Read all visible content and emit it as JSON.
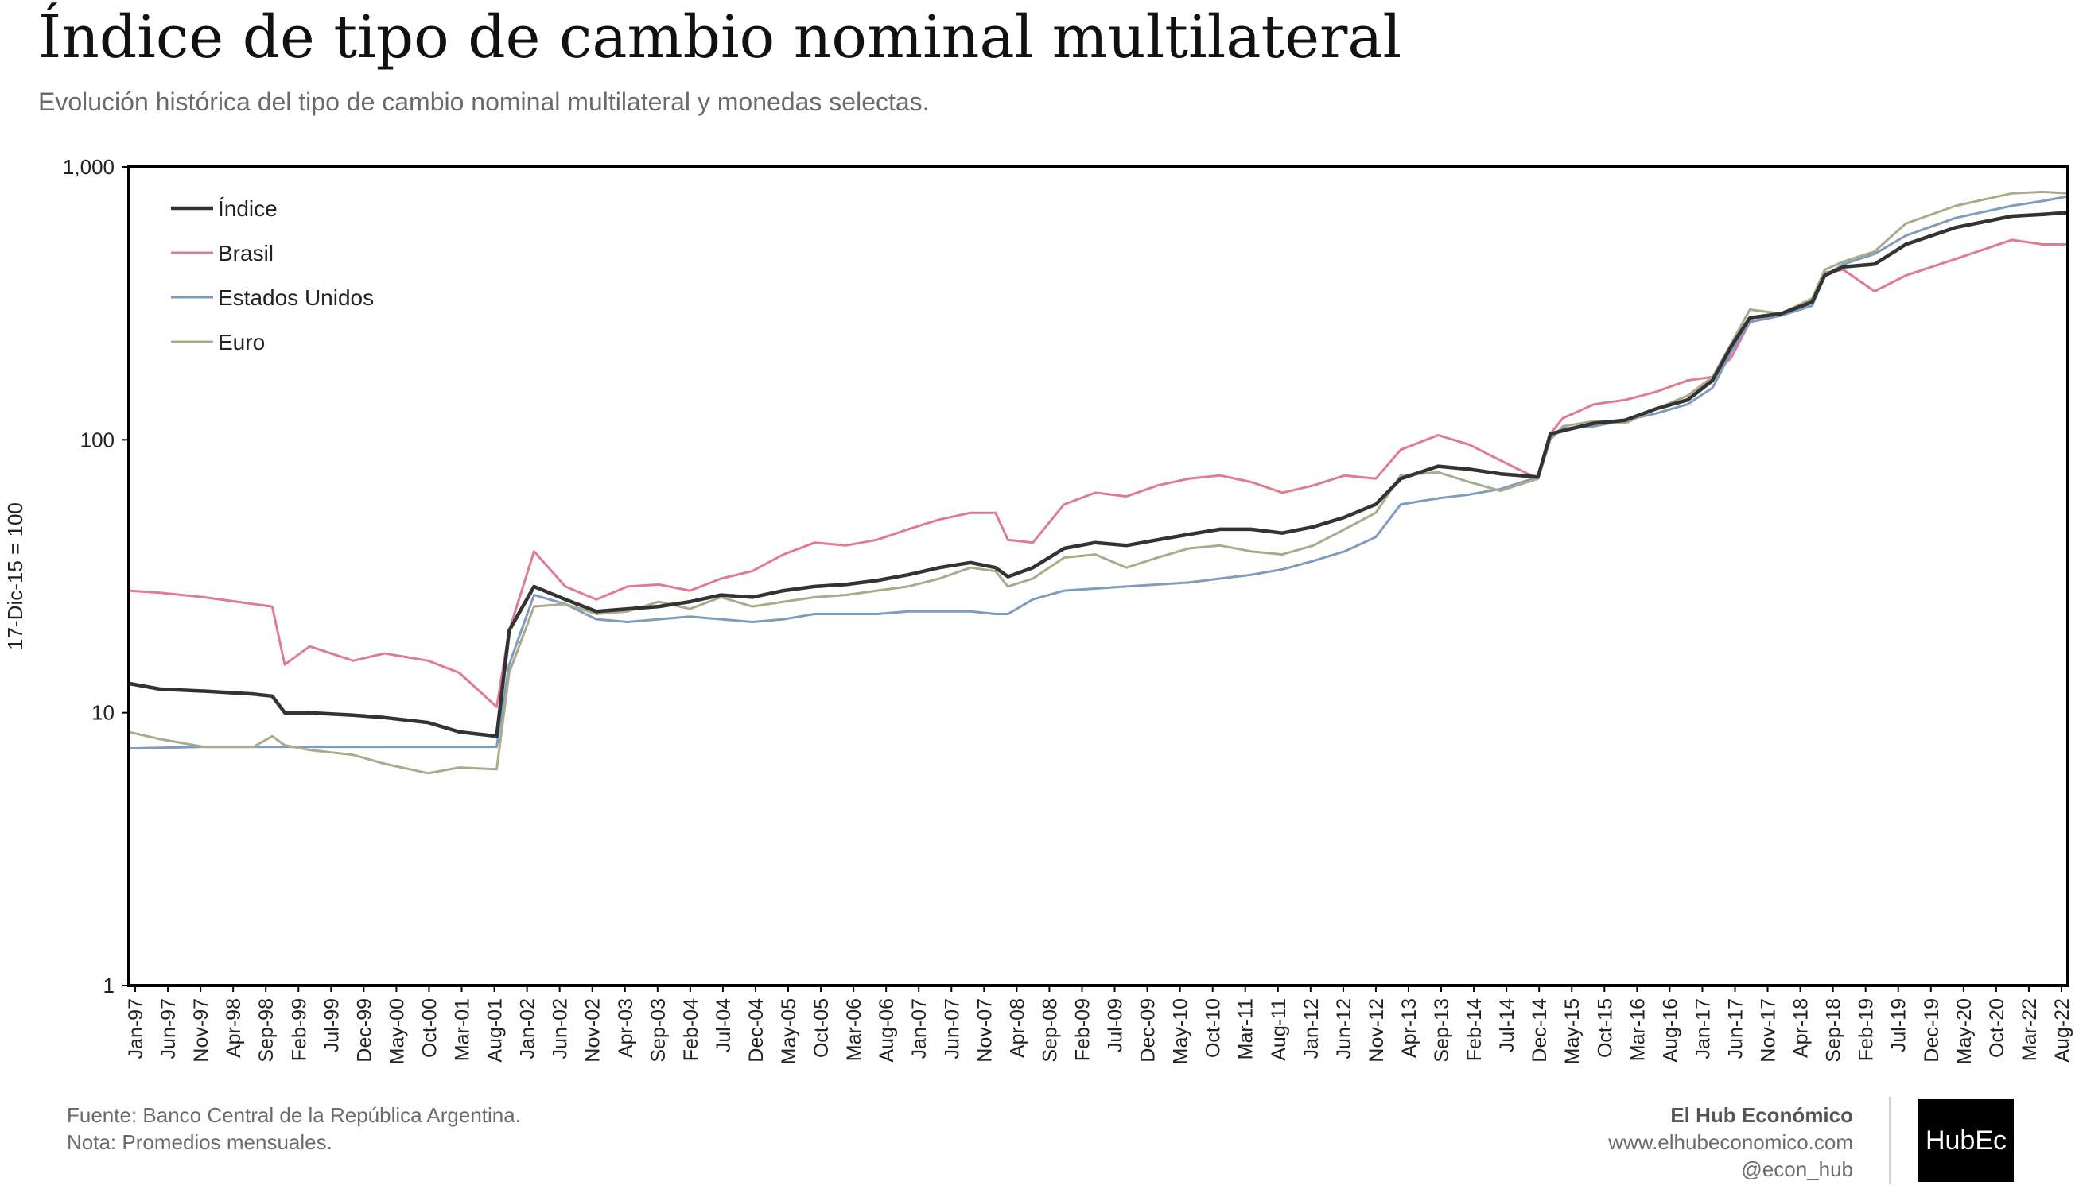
{
  "title": "Índice de tipo de cambio nominal multilateral",
  "subtitle": "Evolución histórica del tipo de cambio nominal multilateral y monedas selectas.",
  "footer": {
    "source": "Fuente: Banco Central de la República Argentina.",
    "note": "Nota: Promedios mensuales.",
    "brand": "El Hub Económico",
    "website": "www.elhubeconomico.com",
    "handle": "@econ_hub",
    "logo": "HubEc"
  },
  "colors": {
    "indice": "#333333",
    "brasil": "#e07b93",
    "eeuu": "#7f9cbd",
    "euro": "#a8ab8c",
    "axis": "#000000",
    "text": "#222222"
  },
  "chart_data": {
    "type": "line",
    "title": "Índice de tipo de cambio nominal multilateral",
    "ylabel": "17-Dic-15 = 100",
    "xlabel": "",
    "yscale": "log",
    "ylim": [
      1,
      1000
    ],
    "yticks": [
      1,
      10,
      100,
      1000
    ],
    "ytick_labels": [
      "1",
      "10",
      "100",
      "1,000"
    ],
    "xlim": [
      "1997-01",
      "2022-12"
    ],
    "xtick_labels": [
      "Jan-97",
      "Jun-97",
      "Nov-97",
      "Apr-98",
      "Sep-98",
      "Feb-99",
      "Jul-99",
      "Dec-99",
      "May-00",
      "Oct-00",
      "Mar-01",
      "Aug-01",
      "Jan-02",
      "Jun-02",
      "Nov-02",
      "Apr-03",
      "Sep-03",
      "Feb-04",
      "Jul-04",
      "Dec-04",
      "May-05",
      "Oct-05",
      "Mar-06",
      "Aug-06",
      "Jan-07",
      "Jun-07",
      "Nov-07",
      "Apr-08",
      "Sep-08",
      "Feb-09",
      "Jul-09",
      "Dec-09",
      "May-10",
      "Oct-10",
      "Mar-11",
      "Aug-11",
      "Jan-12",
      "Jun-12",
      "Nov-12",
      "Apr-13",
      "Sep-13",
      "Feb-14",
      "Jul-14",
      "Dec-14",
      "May-15",
      "Oct-15",
      "Mar-16",
      "Aug-16",
      "Jan-17",
      "Jun-17",
      "Nov-17",
      "Apr-18",
      "Sep-18",
      "Feb-19",
      "Jul-19",
      "Dec-19",
      "May-20",
      "Oct-20",
      "Mar-22",
      "Aug-22"
    ],
    "legend_position": "top-left",
    "series": [
      {
        "name": "Índice",
        "key": "indice",
        "width": 4.5,
        "points": [
          [
            "1997-01",
            12.8
          ],
          [
            "1997-06",
            12.2
          ],
          [
            "1998-01",
            12.0
          ],
          [
            "1998-09",
            11.7
          ],
          [
            "1998-12",
            11.5
          ],
          [
            "1999-02",
            10.0
          ],
          [
            "1999-06",
            10.0
          ],
          [
            "2000-01",
            9.8
          ],
          [
            "2000-06",
            9.6
          ],
          [
            "2001-01",
            9.2
          ],
          [
            "2001-06",
            8.5
          ],
          [
            "2001-12",
            8.2
          ],
          [
            "2002-02",
            20.0
          ],
          [
            "2002-06",
            29.0
          ],
          [
            "2002-11",
            26.0
          ],
          [
            "2003-04",
            23.5
          ],
          [
            "2003-09",
            24.0
          ],
          [
            "2004-02",
            24.5
          ],
          [
            "2004-07",
            25.5
          ],
          [
            "2004-12",
            27.0
          ],
          [
            "2005-05",
            26.5
          ],
          [
            "2005-10",
            28.0
          ],
          [
            "2006-03",
            29.0
          ],
          [
            "2006-08",
            29.5
          ],
          [
            "2007-01",
            30.5
          ],
          [
            "2007-06",
            32.0
          ],
          [
            "2007-11",
            34.0
          ],
          [
            "2008-04",
            35.5
          ],
          [
            "2008-08",
            34.0
          ],
          [
            "2008-10",
            31.5
          ],
          [
            "2009-02",
            34.0
          ],
          [
            "2009-07",
            40.0
          ],
          [
            "2009-12",
            42.0
          ],
          [
            "2010-05",
            41.0
          ],
          [
            "2010-10",
            43.0
          ],
          [
            "2011-03",
            45.0
          ],
          [
            "2011-08",
            47.0
          ],
          [
            "2012-01",
            47.0
          ],
          [
            "2012-06",
            45.5
          ],
          [
            "2012-11",
            48.0
          ],
          [
            "2013-04",
            52.0
          ],
          [
            "2013-09",
            58.0
          ],
          [
            "2014-01",
            72.0
          ],
          [
            "2014-07",
            80.0
          ],
          [
            "2014-12",
            78.0
          ],
          [
            "2015-05",
            75.0
          ],
          [
            "2015-11",
            73.0
          ],
          [
            "2016-01",
            105.0
          ],
          [
            "2016-03",
            108.0
          ],
          [
            "2016-08",
            115.0
          ],
          [
            "2017-01",
            118.0
          ],
          [
            "2017-06",
            130.0
          ],
          [
            "2017-11",
            140.0
          ],
          [
            "2018-03",
            165.0
          ],
          [
            "2018-06",
            220.0
          ],
          [
            "2018-09",
            280.0
          ],
          [
            "2019-02",
            290.0
          ],
          [
            "2019-07",
            320.0
          ],
          [
            "2019-09",
            400.0
          ],
          [
            "2019-12",
            430.0
          ],
          [
            "2020-05",
            440.0
          ],
          [
            "2020-10",
            520.0
          ],
          [
            "2021-06",
            600.0
          ],
          [
            "2022-03",
            660.0
          ],
          [
            "2022-08",
            670.0
          ],
          [
            "2022-12",
            680.0
          ]
        ]
      },
      {
        "name": "Brasil",
        "key": "brasil",
        "width": 3,
        "points": [
          [
            "1997-01",
            28.0
          ],
          [
            "1997-06",
            27.5
          ],
          [
            "1998-01",
            26.5
          ],
          [
            "1998-09",
            25.0
          ],
          [
            "1998-12",
            24.5
          ],
          [
            "1999-02",
            15.0
          ],
          [
            "1999-06",
            17.5
          ],
          [
            "2000-01",
            15.5
          ],
          [
            "2000-06",
            16.5
          ],
          [
            "2001-01",
            15.5
          ],
          [
            "2001-06",
            14.0
          ],
          [
            "2001-12",
            10.5
          ],
          [
            "2002-02",
            20.0
          ],
          [
            "2002-06",
            39.0
          ],
          [
            "2002-11",
            29.0
          ],
          [
            "2003-04",
            26.0
          ],
          [
            "2003-09",
            29.0
          ],
          [
            "2004-02",
            29.5
          ],
          [
            "2004-07",
            28.0
          ],
          [
            "2004-12",
            31.0
          ],
          [
            "2005-05",
            33.0
          ],
          [
            "2005-10",
            38.0
          ],
          [
            "2006-03",
            42.0
          ],
          [
            "2006-08",
            41.0
          ],
          [
            "2007-01",
            43.0
          ],
          [
            "2007-06",
            47.0
          ],
          [
            "2007-11",
            51.0
          ],
          [
            "2008-04",
            54.0
          ],
          [
            "2008-08",
            54.0
          ],
          [
            "2008-10",
            43.0
          ],
          [
            "2009-02",
            42.0
          ],
          [
            "2009-07",
            58.0
          ],
          [
            "2009-12",
            64.0
          ],
          [
            "2010-05",
            62.0
          ],
          [
            "2010-10",
            68.0
          ],
          [
            "2011-03",
            72.0
          ],
          [
            "2011-08",
            74.0
          ],
          [
            "2012-01",
            70.0
          ],
          [
            "2012-06",
            64.0
          ],
          [
            "2012-11",
            68.0
          ],
          [
            "2013-04",
            74.0
          ],
          [
            "2013-09",
            72.0
          ],
          [
            "2014-01",
            92.0
          ],
          [
            "2014-07",
            104.0
          ],
          [
            "2014-12",
            96.0
          ],
          [
            "2015-05",
            84.0
          ],
          [
            "2015-11",
            72.0
          ],
          [
            "2016-01",
            105.0
          ],
          [
            "2016-03",
            120.0
          ],
          [
            "2016-08",
            135.0
          ],
          [
            "2017-01",
            140.0
          ],
          [
            "2017-06",
            150.0
          ],
          [
            "2017-11",
            165.0
          ],
          [
            "2018-03",
            170.0
          ],
          [
            "2018-06",
            200.0
          ],
          [
            "2018-09",
            270.0
          ],
          [
            "2019-02",
            290.0
          ],
          [
            "2019-07",
            310.0
          ],
          [
            "2019-09",
            410.0
          ],
          [
            "2019-12",
            420.0
          ],
          [
            "2020-05",
            350.0
          ],
          [
            "2020-10",
            400.0
          ],
          [
            "2021-06",
            460.0
          ],
          [
            "2022-03",
            540.0
          ],
          [
            "2022-08",
            520.0
          ],
          [
            "2022-12",
            520.0
          ]
        ]
      },
      {
        "name": "Estados Unidos",
        "key": "eeuu",
        "width": 3,
        "points": [
          [
            "1997-01",
            7.4
          ],
          [
            "1998-01",
            7.5
          ],
          [
            "1999-01",
            7.5
          ],
          [
            "2000-01",
            7.5
          ],
          [
            "2001-01",
            7.5
          ],
          [
            "2001-12",
            7.5
          ],
          [
            "2002-02",
            15.0
          ],
          [
            "2002-06",
            27.0
          ],
          [
            "2002-11",
            25.0
          ],
          [
            "2003-04",
            22.0
          ],
          [
            "2003-09",
            21.5
          ],
          [
            "2004-02",
            22.0
          ],
          [
            "2004-07",
            22.5
          ],
          [
            "2004-12",
            22.0
          ],
          [
            "2005-05",
            21.5
          ],
          [
            "2005-10",
            22.0
          ],
          [
            "2006-03",
            23.0
          ],
          [
            "2006-08",
            23.0
          ],
          [
            "2007-01",
            23.0
          ],
          [
            "2007-06",
            23.5
          ],
          [
            "2007-11",
            23.5
          ],
          [
            "2008-04",
            23.5
          ],
          [
            "2008-08",
            23.0
          ],
          [
            "2008-10",
            23.0
          ],
          [
            "2009-02",
            26.0
          ],
          [
            "2009-07",
            28.0
          ],
          [
            "2009-12",
            28.5
          ],
          [
            "2010-05",
            29.0
          ],
          [
            "2010-10",
            29.5
          ],
          [
            "2011-03",
            30.0
          ],
          [
            "2011-08",
            31.0
          ],
          [
            "2012-01",
            32.0
          ],
          [
            "2012-06",
            33.5
          ],
          [
            "2012-11",
            36.0
          ],
          [
            "2013-04",
            39.0
          ],
          [
            "2013-09",
            44.0
          ],
          [
            "2014-01",
            58.0
          ],
          [
            "2014-07",
            61.0
          ],
          [
            "2014-12",
            63.0
          ],
          [
            "2015-05",
            66.0
          ],
          [
            "2015-11",
            73.0
          ],
          [
            "2016-01",
            103.0
          ],
          [
            "2016-03",
            110.0
          ],
          [
            "2016-08",
            112.0
          ],
          [
            "2017-01",
            118.0
          ],
          [
            "2017-06",
            125.0
          ],
          [
            "2017-11",
            135.0
          ],
          [
            "2018-03",
            155.0
          ],
          [
            "2018-06",
            210.0
          ],
          [
            "2018-09",
            270.0
          ],
          [
            "2019-02",
            285.0
          ],
          [
            "2019-07",
            310.0
          ],
          [
            "2019-09",
            400.0
          ],
          [
            "2019-12",
            440.0
          ],
          [
            "2020-05",
            480.0
          ],
          [
            "2020-10",
            560.0
          ],
          [
            "2021-06",
            650.0
          ],
          [
            "2022-03",
            720.0
          ],
          [
            "2022-08",
            750.0
          ],
          [
            "2022-12",
            780.0
          ]
        ]
      },
      {
        "name": "Euro",
        "key": "euro",
        "width": 3,
        "points": [
          [
            "1997-01",
            8.5
          ],
          [
            "1997-06",
            8.0
          ],
          [
            "1998-01",
            7.5
          ],
          [
            "1998-09",
            7.5
          ],
          [
            "1998-12",
            8.2
          ],
          [
            "1999-02",
            7.6
          ],
          [
            "1999-06",
            7.3
          ],
          [
            "2000-01",
            7.0
          ],
          [
            "2000-06",
            6.5
          ],
          [
            "2001-01",
            6.0
          ],
          [
            "2001-06",
            6.3
          ],
          [
            "2001-12",
            6.2
          ],
          [
            "2002-02",
            14.0
          ],
          [
            "2002-06",
            24.5
          ],
          [
            "2002-11",
            25.0
          ],
          [
            "2003-04",
            23.0
          ],
          [
            "2003-09",
            23.5
          ],
          [
            "2004-02",
            25.5
          ],
          [
            "2004-07",
            24.0
          ],
          [
            "2004-12",
            26.5
          ],
          [
            "2005-05",
            24.5
          ],
          [
            "2005-10",
            25.5
          ],
          [
            "2006-03",
            26.5
          ],
          [
            "2006-08",
            27.0
          ],
          [
            "2007-01",
            28.0
          ],
          [
            "2007-06",
            29.0
          ],
          [
            "2007-11",
            31.0
          ],
          [
            "2008-04",
            34.0
          ],
          [
            "2008-08",
            33.0
          ],
          [
            "2008-10",
            29.0
          ],
          [
            "2009-02",
            31.0
          ],
          [
            "2009-07",
            37.0
          ],
          [
            "2009-12",
            38.0
          ],
          [
            "2010-05",
            34.0
          ],
          [
            "2010-10",
            37.0
          ],
          [
            "2011-03",
            40.0
          ],
          [
            "2011-08",
            41.0
          ],
          [
            "2012-01",
            39.0
          ],
          [
            "2012-06",
            38.0
          ],
          [
            "2012-11",
            41.0
          ],
          [
            "2013-04",
            47.0
          ],
          [
            "2013-09",
            54.0
          ],
          [
            "2014-01",
            74.0
          ],
          [
            "2014-07",
            76.0
          ],
          [
            "2014-12",
            70.0
          ],
          [
            "2015-05",
            65.0
          ],
          [
            "2015-11",
            72.0
          ],
          [
            "2016-01",
            100.0
          ],
          [
            "2016-03",
            112.0
          ],
          [
            "2016-08",
            117.0
          ],
          [
            "2017-01",
            115.0
          ],
          [
            "2017-06",
            130.0
          ],
          [
            "2017-11",
            145.0
          ],
          [
            "2018-03",
            170.0
          ],
          [
            "2018-06",
            225.0
          ],
          [
            "2018-09",
            300.0
          ],
          [
            "2019-02",
            290.0
          ],
          [
            "2019-07",
            330.0
          ],
          [
            "2019-09",
            420.0
          ],
          [
            "2019-12",
            450.0
          ],
          [
            "2020-05",
            490.0
          ],
          [
            "2020-10",
            620.0
          ],
          [
            "2021-06",
            720.0
          ],
          [
            "2022-03",
            800.0
          ],
          [
            "2022-08",
            810.0
          ],
          [
            "2022-12",
            800.0
          ]
        ]
      }
    ]
  }
}
